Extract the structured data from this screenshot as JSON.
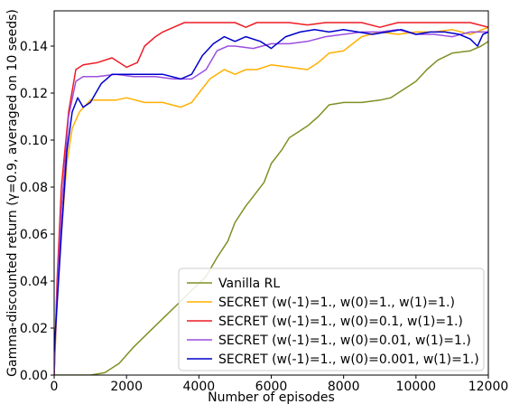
{
  "chart_data": {
    "type": "line",
    "title": "",
    "xlabel": "Number of episodes",
    "ylabel": "Gamma-discounted return (γ=0.9, averaged on 10 seeds)",
    "xlim": [
      0,
      12000
    ],
    "ylim": [
      0,
      0.155
    ],
    "x_ticks": [
      "0",
      "2000",
      "4000",
      "6000",
      "8000",
      "10000",
      "12000"
    ],
    "y_ticks": [
      "0.00",
      "0.02",
      "0.04",
      "0.06",
      "0.08",
      "0.10",
      "0.12",
      "0.14"
    ],
    "grid": false,
    "legend_position": "bottom-right",
    "series": [
      {
        "name": "Vanilla RL",
        "color": "#808f24",
        "points": [
          [
            0,
            0
          ],
          [
            1000,
            0
          ],
          [
            1400,
            0.001
          ],
          [
            1800,
            0.005
          ],
          [
            2200,
            0.012
          ],
          [
            2600,
            0.018
          ],
          [
            3000,
            0.024
          ],
          [
            3400,
            0.03
          ],
          [
            3800,
            0.036
          ],
          [
            4200,
            0.042
          ],
          [
            4500,
            0.05
          ],
          [
            4800,
            0.057
          ],
          [
            5000,
            0.065
          ],
          [
            5300,
            0.072
          ],
          [
            5500,
            0.076
          ],
          [
            5800,
            0.082
          ],
          [
            6000,
            0.09
          ],
          [
            6300,
            0.096
          ],
          [
            6500,
            0.101
          ],
          [
            6800,
            0.104
          ],
          [
            7000,
            0.106
          ],
          [
            7300,
            0.11
          ],
          [
            7600,
            0.115
          ],
          [
            8000,
            0.116
          ],
          [
            8500,
            0.116
          ],
          [
            9000,
            0.117
          ],
          [
            9300,
            0.118
          ],
          [
            9500,
            0.12
          ],
          [
            9800,
            0.123
          ],
          [
            10000,
            0.125
          ],
          [
            10300,
            0.13
          ],
          [
            10600,
            0.134
          ],
          [
            11000,
            0.137
          ],
          [
            11500,
            0.138
          ],
          [
            11800,
            0.14
          ],
          [
            12000,
            0.142
          ]
        ]
      },
      {
        "name": "SECRET (w(-1)=1., w(0)=1., w(1)=1.)",
        "color": "#ffb000",
        "points": [
          [
            0,
            0
          ],
          [
            80,
            0.03
          ],
          [
            200,
            0.06
          ],
          [
            350,
            0.09
          ],
          [
            500,
            0.105
          ],
          [
            700,
            0.112
          ],
          [
            1000,
            0.117
          ],
          [
            1300,
            0.117
          ],
          [
            1700,
            0.117
          ],
          [
            2000,
            0.118
          ],
          [
            2500,
            0.116
          ],
          [
            3000,
            0.116
          ],
          [
            3500,
            0.114
          ],
          [
            3800,
            0.116
          ],
          [
            4000,
            0.12
          ],
          [
            4300,
            0.126
          ],
          [
            4700,
            0.13
          ],
          [
            5000,
            0.128
          ],
          [
            5300,
            0.13
          ],
          [
            5600,
            0.13
          ],
          [
            6000,
            0.132
          ],
          [
            6500,
            0.131
          ],
          [
            7000,
            0.13
          ],
          [
            7300,
            0.133
          ],
          [
            7600,
            0.137
          ],
          [
            8000,
            0.138
          ],
          [
            8500,
            0.144
          ],
          [
            9000,
            0.146
          ],
          [
            9500,
            0.145
          ],
          [
            10000,
            0.146
          ],
          [
            10500,
            0.146
          ],
          [
            11000,
            0.147
          ],
          [
            11500,
            0.145
          ],
          [
            12000,
            0.148
          ]
        ]
      },
      {
        "name": "SECRET (w(-1)=1., w(0)=0.1, w(1)=1.)",
        "color": "#ee1c25",
        "points": [
          [
            0,
            0
          ],
          [
            80,
            0.04
          ],
          [
            200,
            0.08
          ],
          [
            400,
            0.112
          ],
          [
            600,
            0.13
          ],
          [
            800,
            0.132
          ],
          [
            1200,
            0.133
          ],
          [
            1600,
            0.135
          ],
          [
            2000,
            0.131
          ],
          [
            2300,
            0.133
          ],
          [
            2500,
            0.14
          ],
          [
            2800,
            0.144
          ],
          [
            3000,
            0.146
          ],
          [
            3300,
            0.148
          ],
          [
            3600,
            0.15
          ],
          [
            4000,
            0.15
          ],
          [
            4500,
            0.15
          ],
          [
            5000,
            0.15
          ],
          [
            5300,
            0.148
          ],
          [
            5600,
            0.15
          ],
          [
            6000,
            0.15
          ],
          [
            6500,
            0.15
          ],
          [
            7000,
            0.149
          ],
          [
            7500,
            0.15
          ],
          [
            8000,
            0.15
          ],
          [
            8500,
            0.15
          ],
          [
            9000,
            0.148
          ],
          [
            9500,
            0.15
          ],
          [
            10000,
            0.15
          ],
          [
            10500,
            0.15
          ],
          [
            11000,
            0.15
          ],
          [
            11500,
            0.15
          ],
          [
            12000,
            0.148
          ]
        ]
      },
      {
        "name": "SECRET (w(-1)=1., w(0)=0.01, w(1)=1.)",
        "color": "#9b4fe0",
        "points": [
          [
            0,
            0
          ],
          [
            80,
            0.035
          ],
          [
            200,
            0.07
          ],
          [
            400,
            0.11
          ],
          [
            600,
            0.125
          ],
          [
            800,
            0.127
          ],
          [
            1200,
            0.127
          ],
          [
            1700,
            0.128
          ],
          [
            2200,
            0.127
          ],
          [
            2800,
            0.127
          ],
          [
            3300,
            0.126
          ],
          [
            3800,
            0.126
          ],
          [
            4200,
            0.13
          ],
          [
            4500,
            0.138
          ],
          [
            4800,
            0.14
          ],
          [
            5000,
            0.14
          ],
          [
            5500,
            0.139
          ],
          [
            6000,
            0.141
          ],
          [
            6500,
            0.141
          ],
          [
            7000,
            0.142
          ],
          [
            7500,
            0.144
          ],
          [
            8000,
            0.145
          ],
          [
            8500,
            0.146
          ],
          [
            9000,
            0.146
          ],
          [
            9500,
            0.147
          ],
          [
            10000,
            0.145
          ],
          [
            10500,
            0.145
          ],
          [
            11000,
            0.144
          ],
          [
            11500,
            0.146
          ],
          [
            12000,
            0.146
          ]
        ]
      },
      {
        "name": "SECRET (w(-1)=1., w(0)=0.001, w(1)=1.)",
        "color": "#0000cc",
        "points": [
          [
            0,
            0.01
          ],
          [
            80,
            0.03
          ],
          [
            200,
            0.06
          ],
          [
            350,
            0.095
          ],
          [
            500,
            0.112
          ],
          [
            650,
            0.118
          ],
          [
            800,
            0.114
          ],
          [
            1000,
            0.116
          ],
          [
            1300,
            0.124
          ],
          [
            1600,
            0.128
          ],
          [
            2000,
            0.128
          ],
          [
            2500,
            0.128
          ],
          [
            3000,
            0.128
          ],
          [
            3500,
            0.126
          ],
          [
            3800,
            0.128
          ],
          [
            4100,
            0.136
          ],
          [
            4400,
            0.141
          ],
          [
            4700,
            0.144
          ],
          [
            5000,
            0.142
          ],
          [
            5300,
            0.144
          ],
          [
            5700,
            0.142
          ],
          [
            6000,
            0.139
          ],
          [
            6400,
            0.144
          ],
          [
            6800,
            0.146
          ],
          [
            7200,
            0.147
          ],
          [
            7600,
            0.146
          ],
          [
            8000,
            0.147
          ],
          [
            8400,
            0.146
          ],
          [
            8800,
            0.145
          ],
          [
            9200,
            0.146
          ],
          [
            9600,
            0.147
          ],
          [
            10000,
            0.145
          ],
          [
            10400,
            0.146
          ],
          [
            10800,
            0.146
          ],
          [
            11200,
            0.145
          ],
          [
            11500,
            0.143
          ],
          [
            11700,
            0.14
          ],
          [
            11850,
            0.145
          ],
          [
            12000,
            0.146
          ]
        ]
      }
    ]
  }
}
